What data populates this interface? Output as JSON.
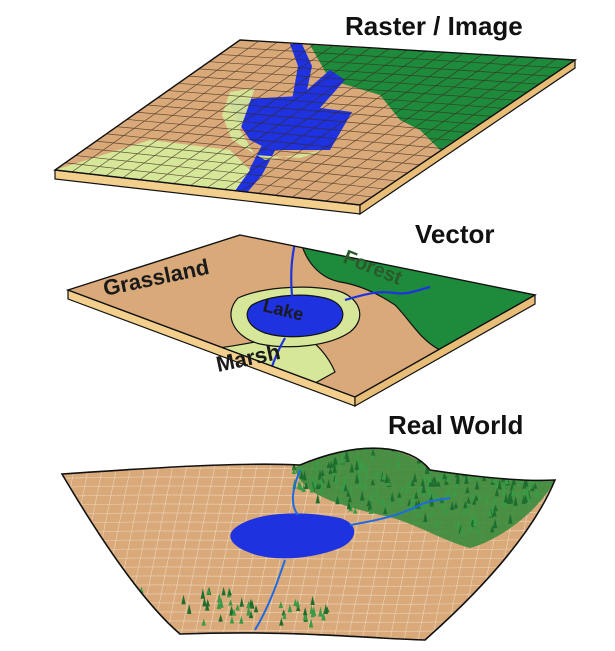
{
  "titles": {
    "raster": "Raster / Image",
    "vector": "Vector",
    "real_world": "Real World"
  },
  "vector_labels": {
    "grassland": "Grassland",
    "forest": "Forest",
    "lake": "Lake",
    "marsh": "Marsh"
  },
  "colors": {
    "grassland": "#d9a97a",
    "forest": "#1e8a3c",
    "lake": "#1f32e0",
    "marsh": "#d6e79a",
    "slab_edge": "#f3cf8e",
    "grid_line": "#3a2a1a",
    "outline": "#111111"
  }
}
